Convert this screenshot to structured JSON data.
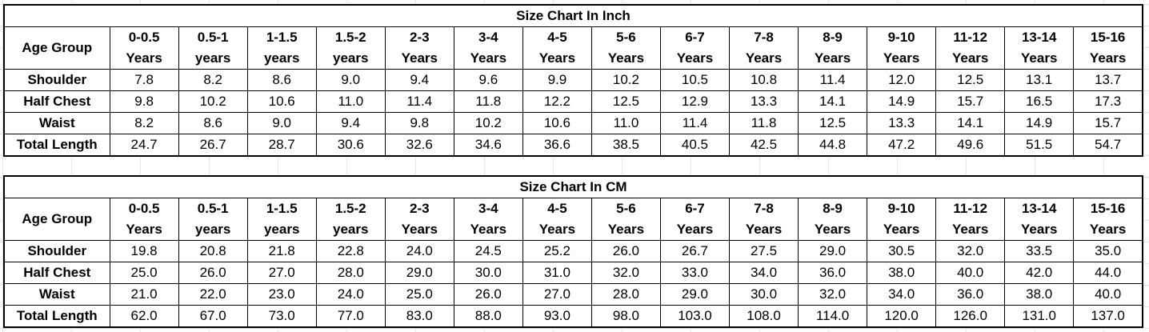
{
  "colors": {
    "border": "#000000",
    "background": "#ffffff",
    "gridline": "#e4e4e4"
  },
  "tables": [
    {
      "title": "Size Chart In Inch",
      "header_label": "Age Group",
      "columns": [
        {
          "l1": "0-0.5",
          "l2": "Years"
        },
        {
          "l1": "0.5-1",
          "l2": "years"
        },
        {
          "l1": "1-1.5",
          "l2": "years"
        },
        {
          "l1": "1.5-2",
          "l2": "years"
        },
        {
          "l1": "2-3",
          "l2": "Years"
        },
        {
          "l1": "3-4",
          "l2": "Years"
        },
        {
          "l1": "4-5",
          "l2": "Years"
        },
        {
          "l1": "5-6",
          "l2": "Years"
        },
        {
          "l1": "6-7",
          "l2": "Years"
        },
        {
          "l1": "7-8",
          "l2": "Years"
        },
        {
          "l1": "8-9",
          "l2": "Years"
        },
        {
          "l1": "9-10",
          "l2": "Years"
        },
        {
          "l1": "11-12",
          "l2": "Years"
        },
        {
          "l1": "13-14",
          "l2": "Years"
        },
        {
          "l1": "15-16",
          "l2": "Years"
        }
      ],
      "rows": [
        {
          "label": "Shoulder",
          "values": [
            "7.8",
            "8.2",
            "8.6",
            "9.0",
            "9.4",
            "9.6",
            "9.9",
            "10.2",
            "10.5",
            "10.8",
            "11.4",
            "12.0",
            "12.5",
            "13.1",
            "13.7"
          ]
        },
        {
          "label": "Half Chest",
          "values": [
            "9.8",
            "10.2",
            "10.6",
            "11.0",
            "11.4",
            "11.8",
            "12.2",
            "12.5",
            "12.9",
            "13.3",
            "14.1",
            "14.9",
            "15.7",
            "16.5",
            "17.3"
          ]
        },
        {
          "label": "Waist",
          "values": [
            "8.2",
            "8.6",
            "9.0",
            "9.4",
            "9.8",
            "10.2",
            "10.6",
            "11.0",
            "11.4",
            "11.8",
            "12.5",
            "13.3",
            "14.1",
            "14.9",
            "15.7"
          ]
        },
        {
          "label": "Total Length",
          "values": [
            "24.7",
            "26.7",
            "28.7",
            "30.6",
            "32.6",
            "34.6",
            "36.6",
            "38.5",
            "40.5",
            "42.5",
            "44.8",
            "47.2",
            "49.6",
            "51.5",
            "54.7"
          ]
        }
      ]
    },
    {
      "title": "Size Chart In CM",
      "header_label": "Age Group",
      "columns": [
        {
          "l1": "0-0.5",
          "l2": "Years"
        },
        {
          "l1": "0.5-1",
          "l2": "years"
        },
        {
          "l1": "1-1.5",
          "l2": "years"
        },
        {
          "l1": "1.5-2",
          "l2": "years"
        },
        {
          "l1": "2-3",
          "l2": "Years"
        },
        {
          "l1": "3-4",
          "l2": "Years"
        },
        {
          "l1": "4-5",
          "l2": "Years"
        },
        {
          "l1": "5-6",
          "l2": "Years"
        },
        {
          "l1": "6-7",
          "l2": "Years"
        },
        {
          "l1": "7-8",
          "l2": "Years"
        },
        {
          "l1": "8-9",
          "l2": "Years"
        },
        {
          "l1": "9-10",
          "l2": "Years"
        },
        {
          "l1": "11-12",
          "l2": "Years"
        },
        {
          "l1": "13-14",
          "l2": "Years"
        },
        {
          "l1": "15-16",
          "l2": "Years"
        }
      ],
      "rows": [
        {
          "label": "Shoulder",
          "values": [
            "19.8",
            "20.8",
            "21.8",
            "22.8",
            "24.0",
            "24.5",
            "25.2",
            "26.0",
            "26.7",
            "27.5",
            "29.0",
            "30.5",
            "32.0",
            "33.5",
            "35.0"
          ]
        },
        {
          "label": "Half Chest",
          "values": [
            "25.0",
            "26.0",
            "27.0",
            "28.0",
            "29.0",
            "30.0",
            "31.0",
            "32.0",
            "33.0",
            "34.0",
            "36.0",
            "38.0",
            "40.0",
            "42.0",
            "44.0"
          ]
        },
        {
          "label": "Waist",
          "values": [
            "21.0",
            "22.0",
            "23.0",
            "24.0",
            "25.0",
            "26.0",
            "27.0",
            "28.0",
            "29.0",
            "30.0",
            "32.0",
            "34.0",
            "36.0",
            "38.0",
            "40.0"
          ]
        },
        {
          "label": "Total Length",
          "values": [
            "62.0",
            "67.0",
            "73.0",
            "77.0",
            "83.0",
            "88.0",
            "93.0",
            "98.0",
            "103.0",
            "108.0",
            "114.0",
            "120.0",
            "126.0",
            "131.0",
            "137.0"
          ]
        }
      ]
    }
  ]
}
